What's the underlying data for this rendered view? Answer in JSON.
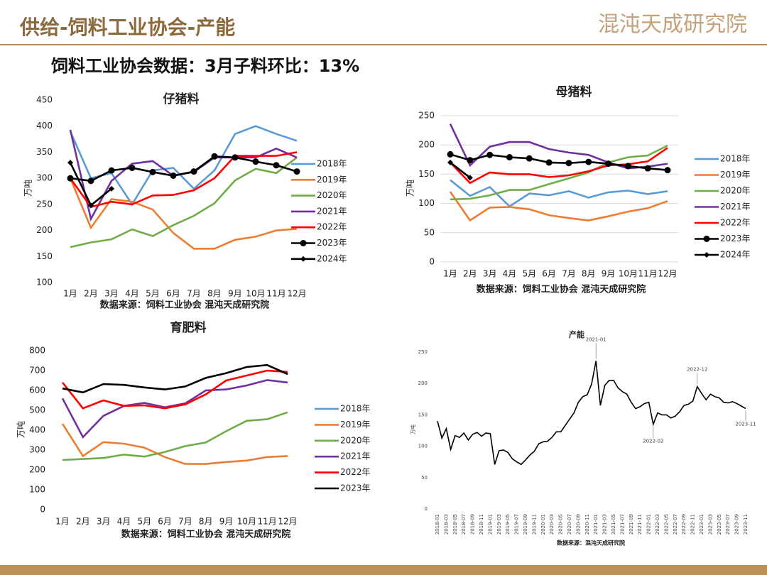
{
  "header": {
    "title": "供给-饲料工业协会-产能",
    "logo": "混沌天成研究院",
    "subtitle": "饲料工业协会数据：3月子料环比：13%"
  },
  "chart_data": [
    {
      "type": "line",
      "title": "仔猪料",
      "y_label": "万吨",
      "source": "数据来源：饲料工业协会 混沌天成研究院",
      "categories": [
        "1月",
        "2月",
        "3月",
        "4月",
        "5月",
        "6月",
        "7月",
        "8月",
        "9月",
        "10月",
        "11月",
        "12月"
      ],
      "ylim": [
        100,
        450
      ],
      "yticks": [
        100,
        150,
        200,
        250,
        300,
        350,
        400,
        450
      ],
      "grid": false,
      "legend": "right",
      "series": [
        {
          "name": "2018年",
          "color": "#5b9bd5",
          "values": [
            390,
            300,
            310,
            250,
            315,
            320,
            280,
            315,
            385,
            400,
            385,
            372
          ]
        },
        {
          "name": "2019年",
          "color": "#ed7d31",
          "values": [
            300,
            205,
            260,
            255,
            240,
            195,
            165,
            165,
            182,
            188,
            200,
            203
          ]
        },
        {
          "name": "2020年",
          "color": "#70ad47",
          "values": [
            168,
            177,
            183,
            202,
            189,
            210,
            228,
            252,
            296,
            318,
            310,
            340
          ]
        },
        {
          "name": "2021年",
          "color": "#7030a0",
          "values": [
            393,
            222,
            295,
            328,
            333,
            305,
            312,
            340,
            340,
            340,
            357,
            340
          ]
        },
        {
          "name": "2022年",
          "color": "#ff0000",
          "values": [
            300,
            245,
            255,
            250,
            267,
            268,
            277,
            300,
            343,
            343,
            343,
            350
          ]
        },
        {
          "name": "2023年",
          "color": "#000000",
          "marker": "circle",
          "values": [
            300,
            295,
            315,
            320,
            312,
            305,
            313,
            342,
            340,
            332,
            325,
            313
          ]
        },
        {
          "name": "2024年",
          "color": "#000000",
          "marker": "diamond",
          "values": [
            330,
            248,
            280,
            null,
            null,
            null,
            null,
            null,
            null,
            null,
            null,
            null
          ]
        }
      ]
    },
    {
      "type": "line",
      "title": "母猪料",
      "y_label": "万吨",
      "source": "数据来源：饲料工业协会 混沌天成研究院",
      "categories": [
        "1月",
        "2月",
        "3月",
        "4月",
        "5月",
        "6月",
        "7月",
        "8月",
        "9月",
        "10月",
        "11月",
        "12月"
      ],
      "ylim": [
        0,
        250
      ],
      "yticks": [
        0,
        50,
        100,
        150,
        200,
        250
      ],
      "grid": true,
      "legend": "right",
      "series": [
        {
          "name": "2018年",
          "color": "#5b9bd5",
          "values": [
            140,
            113,
            128,
            95,
            117,
            114,
            121,
            110,
            119,
            122,
            116,
            121
          ]
        },
        {
          "name": "2019年",
          "color": "#ed7d31",
          "values": [
            120,
            71,
            93,
            94,
            90,
            80,
            75,
            71,
            78,
            86,
            92,
            104
          ]
        },
        {
          "name": "2020年",
          "color": "#70ad47",
          "values": [
            107,
            108,
            114,
            123,
            123,
            133,
            143,
            153,
            170,
            179,
            182,
            199
          ]
        },
        {
          "name": "2021年",
          "color": "#7030a0",
          "values": [
            236,
            165,
            197,
            205,
            205,
            193,
            187,
            183,
            170,
            160,
            163,
            168
          ]
        },
        {
          "name": "2022年",
          "color": "#ff0000",
          "values": [
            170,
            135,
            153,
            150,
            150,
            145,
            148,
            155,
            165,
            167,
            172,
            195
          ]
        },
        {
          "name": "2023年",
          "color": "#000000",
          "marker": "circle",
          "values": [
            184,
            174,
            183,
            179,
            177,
            170,
            169,
            171,
            168,
            164,
            160,
            157
          ]
        },
        {
          "name": "2024年",
          "color": "#000000",
          "marker": "diamond",
          "values": [
            170,
            144,
            null,
            null,
            null,
            null,
            null,
            null,
            null,
            null,
            null,
            null
          ]
        }
      ]
    },
    {
      "type": "line",
      "title": "育肥料",
      "y_label": "万吨",
      "source": "数据来源：饲料工业协会 混沌天成研究院",
      "categories": [
        "1月",
        "2月",
        "3月",
        "4月",
        "5月",
        "6月",
        "7月",
        "8月",
        "9月",
        "10月",
        "11月",
        "12月"
      ],
      "ylim": [
        0,
        800
      ],
      "yticks": [
        0,
        100,
        200,
        300,
        400,
        500,
        600,
        700,
        800
      ],
      "grid": false,
      "legend": "right",
      "series": [
        {
          "name": "2018年",
          "color": "#5b9bd5",
          "values": [
            null,
            null,
            null,
            null,
            null,
            null,
            null,
            null,
            null,
            null,
            null,
            null
          ]
        },
        {
          "name": "2019年",
          "color": "#ed7d31",
          "values": [
            432,
            270,
            340,
            332,
            312,
            265,
            230,
            230,
            240,
            247,
            265,
            270
          ]
        },
        {
          "name": "2020年",
          "color": "#70ad47",
          "values": [
            250,
            255,
            260,
            277,
            267,
            290,
            320,
            338,
            395,
            447,
            455,
            490
          ]
        },
        {
          "name": "2021年",
          "color": "#7030a0",
          "values": [
            560,
            365,
            472,
            522,
            537,
            515,
            535,
            600,
            605,
            625,
            652,
            640
          ]
        },
        {
          "name": "2022年",
          "color": "#ff0000",
          "values": [
            640,
            510,
            550,
            522,
            525,
            510,
            530,
            580,
            650,
            675,
            700,
            693
          ]
        },
        {
          "name": "2023年",
          "color": "#000000",
          "values": [
            610,
            590,
            632,
            628,
            615,
            605,
            620,
            663,
            687,
            718,
            728,
            682
          ]
        }
      ]
    },
    {
      "type": "line",
      "title": "产能",
      "y_label": "万吨",
      "source": "数据来源：混沌天成研究院",
      "categories": [
        "2018-01",
        null,
        "2018-03",
        null,
        "2018-05",
        null,
        "2018-07",
        null,
        "2018-09",
        null,
        "2018-11",
        null,
        "2019-01",
        null,
        "2019-03",
        null,
        "2019-05",
        null,
        "2019-07",
        null,
        "2019-09",
        null,
        "2019-11",
        null,
        "2020-01",
        null,
        "2020-03",
        null,
        "2020-05",
        null,
        "2020-07",
        null,
        "2020-09",
        null,
        "2020-11",
        null,
        "2021-01",
        null,
        "2021-03",
        null,
        "2021-05",
        null,
        "2021-07",
        null,
        "2021-09",
        null,
        "2021-11",
        null,
        "2022-01",
        null,
        "2022-03",
        null,
        "2022-05",
        null,
        "2022-07",
        null,
        "2022-09",
        null,
        "2022-11",
        null,
        "2023-01",
        null,
        "2023-03",
        null,
        "2023-05",
        null,
        "2023-07",
        null,
        "2023-09",
        null,
        "2023-11"
      ],
      "values": [
        140,
        113,
        128,
        95,
        117,
        114,
        121,
        110,
        119,
        122,
        116,
        121,
        120,
        71,
        93,
        94,
        90,
        80,
        75,
        71,
        78,
        86,
        92,
        104,
        107,
        108,
        114,
        123,
        123,
        133,
        143,
        153,
        170,
        179,
        182,
        199,
        236,
        165,
        197,
        205,
        205,
        193,
        187,
        183,
        170,
        160,
        163,
        168,
        170,
        135,
        153,
        150,
        150,
        145,
        148,
        155,
        165,
        167,
        172,
        195,
        184,
        174,
        183,
        179,
        177,
        170,
        169,
        171,
        168,
        164,
        160
      ],
      "color": "#000000",
      "ylim": [
        0,
        250
      ],
      "yticks": [
        0,
        50,
        100,
        150,
        200,
        250
      ],
      "grid": false,
      "annotations": [
        "2021-01",
        "2022-12",
        "2022-02",
        "2023-11"
      ]
    }
  ]
}
